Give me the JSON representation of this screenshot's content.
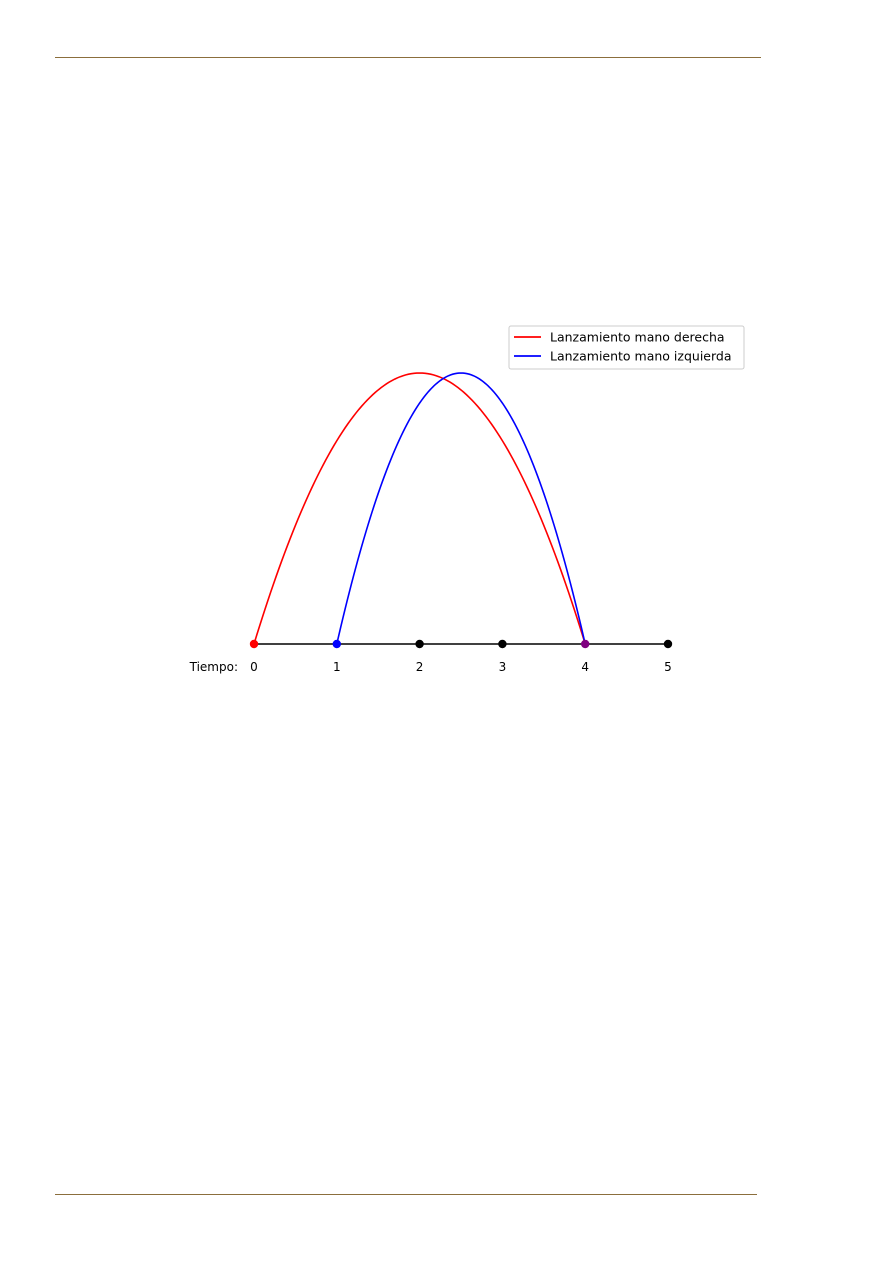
{
  "chart_data": {
    "type": "line",
    "x_axis_label": "Tiempo:",
    "x_ticks": [
      0,
      1,
      2,
      3,
      4,
      5
    ],
    "x_tick_labels": [
      "0",
      "1",
      "2",
      "3",
      "4",
      "5"
    ],
    "xlim": [
      0,
      5
    ],
    "ylim": [
      0,
      1
    ],
    "grid": false,
    "legend_position": "top-right",
    "timeline_points": [
      {
        "x": 0,
        "color": "#ff0000"
      },
      {
        "x": 1,
        "color": "#0000ff"
      },
      {
        "x": 2,
        "color": "#000000"
      },
      {
        "x": 3,
        "color": "#000000"
      },
      {
        "x": 4,
        "color": "#800080"
      },
      {
        "x": 5,
        "color": "#000000"
      }
    ],
    "series": [
      {
        "name": "Lanzamiento mano derecha",
        "color": "#ff0000",
        "x_start": 0,
        "x_end": 4,
        "peak": 1
      },
      {
        "name": "Lanzamiento mano izquierda",
        "color": "#0000ff",
        "x_start": 1,
        "x_end": 4,
        "peak": 1
      }
    ]
  }
}
